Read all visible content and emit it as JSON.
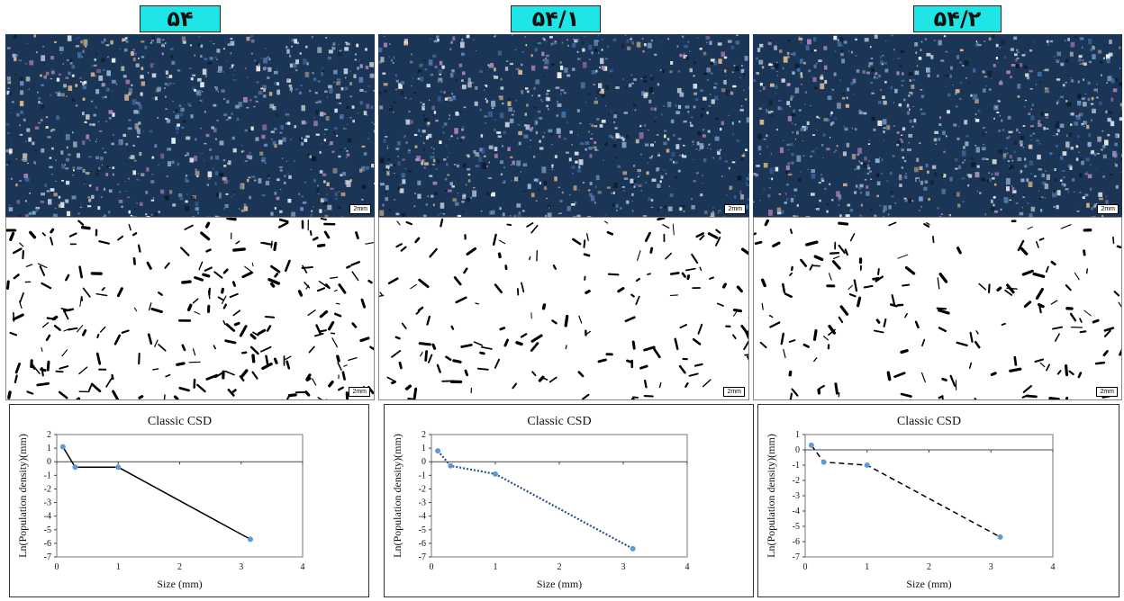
{
  "panels": [
    {
      "label": "۵۴",
      "scale_label": "2mm"
    },
    {
      "label": "۵۴/۱",
      "scale_label": "2mm"
    },
    {
      "label": "۵۴/۲",
      "scale_label": "2mm"
    }
  ],
  "chart_data": [
    {
      "type": "line",
      "title": "Classic CSD",
      "xlabel": "Size (mm)",
      "ylabel": "Ln(Population density)(mm)",
      "xlim": [
        0,
        4
      ],
      "ylim": [
        -7,
        2
      ],
      "xticks": [
        0,
        1,
        2,
        3,
        4
      ],
      "yticks": [
        2,
        1,
        0,
        -1,
        -2,
        -3,
        -4,
        -5,
        -6,
        -7
      ],
      "line_style": "solid",
      "line_color": "#000000",
      "marker_color": "#5b9bd5",
      "series": [
        {
          "x": [
            0.1,
            0.3,
            1.0,
            3.15
          ],
          "y": [
            1.1,
            -0.4,
            -0.4,
            -5.7
          ]
        }
      ]
    },
    {
      "type": "line",
      "title": "Classic CSD",
      "xlabel": "Size (mm)",
      "ylabel": "Ln(Population density)(mm)",
      "xlim": [
        0,
        4
      ],
      "ylim": [
        -7,
        2
      ],
      "xticks": [
        0,
        1,
        2,
        3,
        4
      ],
      "yticks": [
        2,
        1,
        0,
        -1,
        -2,
        -3,
        -4,
        -5,
        -6,
        -7
      ],
      "line_style": "dotted",
      "line_color": "#2f4f8f",
      "marker_color": "#5b9bd5",
      "series": [
        {
          "x": [
            0.1,
            0.3,
            1.0,
            3.15
          ],
          "y": [
            0.8,
            -0.3,
            -0.9,
            -6.4
          ]
        }
      ]
    },
    {
      "type": "line",
      "title": "Classic CSD",
      "xlabel": "Size (mm)",
      "ylabel": "Ln(Population density)(mm)",
      "xlim": [
        0,
        4
      ],
      "ylim": [
        -7,
        1
      ],
      "xticks": [
        0,
        1,
        2,
        3,
        4
      ],
      "yticks": [
        1,
        0,
        -1,
        -2,
        -3,
        -4,
        -5,
        -6,
        -7
      ],
      "line_style": "dashed",
      "line_color": "#000000",
      "marker_color": "#5b9bd5",
      "series": [
        {
          "x": [
            0.1,
            0.3,
            1.0,
            3.15
          ],
          "y": [
            0.3,
            -0.8,
            -1.0,
            -5.7
          ]
        }
      ]
    }
  ]
}
